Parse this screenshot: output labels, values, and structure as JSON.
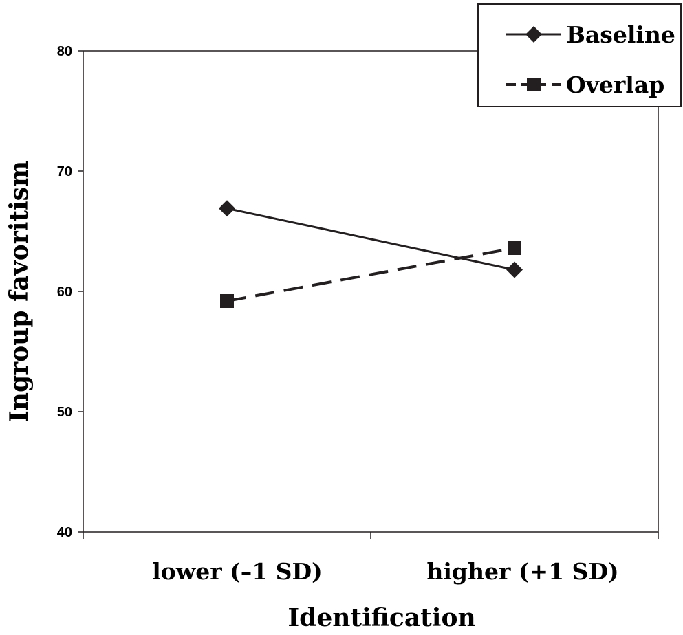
{
  "chart_data": {
    "type": "line",
    "categories": [
      "lower (–1 SD)",
      "higher (+1 SD)"
    ],
    "series": [
      {
        "name": "Baseline",
        "values": [
          66.9,
          61.8
        ],
        "marker": "diamond",
        "line_style": "solid",
        "color": "#231f20"
      },
      {
        "name": "Overlap",
        "values": [
          59.2,
          63.6
        ],
        "marker": "square",
        "line_style": "dashed",
        "color": "#231f20"
      }
    ],
    "title": "",
    "xlabel": "Identification",
    "ylabel": "Ingroup favoritism",
    "ylim": [
      40,
      80
    ],
    "yticks": [
      "40",
      "50",
      "60",
      "70",
      "80"
    ],
    "grid": false,
    "legend_position": "top-right"
  }
}
